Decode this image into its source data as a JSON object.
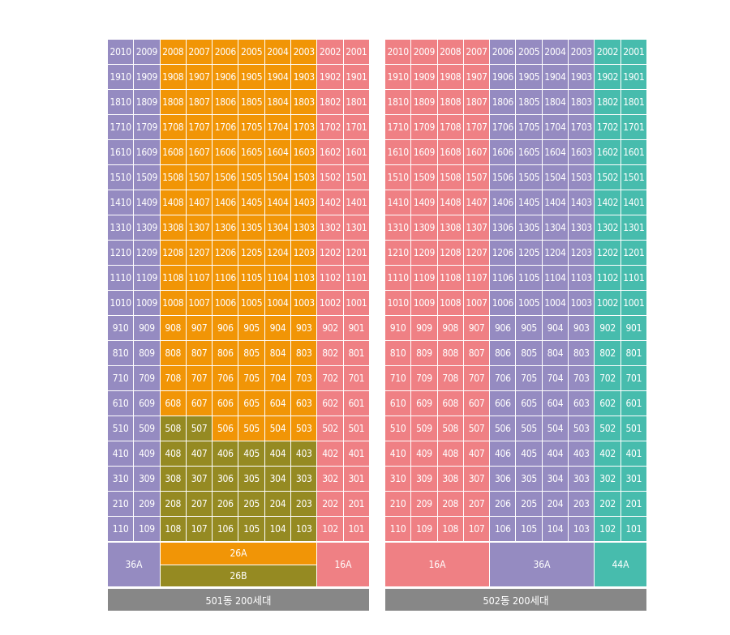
{
  "colors": {
    "36A": "#958bc1",
    "26A": "#f19506",
    "26B": "#958a22",
    "16A": "#ef8084",
    "44A": "#47bcad",
    "footer": "#878787"
  },
  "floors": [
    20,
    19,
    18,
    17,
    16,
    15,
    14,
    13,
    12,
    11,
    10,
    9,
    8,
    7,
    6,
    5,
    4,
    3,
    2,
    1
  ],
  "buildings": [
    {
      "id": "501",
      "footer_label": "501동 200세대",
      "columns": [
        {
          "unit": "10",
          "types": {
            "default": "36A"
          }
        },
        {
          "unit": "09",
          "types": {
            "default": "36A"
          }
        },
        {
          "unit": "08",
          "types": {
            "default": "26A",
            "below5": "26B"
          }
        },
        {
          "unit": "07",
          "types": {
            "default": "26A",
            "below5": "26B"
          }
        },
        {
          "unit": "06",
          "types": {
            "default": "26A",
            "below4": "26B"
          }
        },
        {
          "unit": "05",
          "types": {
            "default": "26A",
            "below4": "26B"
          }
        },
        {
          "unit": "04",
          "types": {
            "default": "26A",
            "below4": "26B"
          }
        },
        {
          "unit": "03",
          "types": {
            "default": "26A",
            "below4": "26B"
          }
        },
        {
          "unit": "02",
          "types": {
            "default": "16A"
          }
        },
        {
          "unit": "01",
          "types": {
            "default": "16A"
          }
        }
      ],
      "legend": [
        {
          "label": "36A",
          "type": "36A",
          "span": 2
        },
        {
          "stack": [
            {
              "label": "26A",
              "type": "26A"
            },
            {
              "label": "26B",
              "type": "26B"
            }
          ],
          "span": 6
        },
        {
          "label": "16A",
          "type": "16A",
          "span": 2
        }
      ]
    },
    {
      "id": "502",
      "footer_label": "502동 200세대",
      "columns": [
        {
          "unit": "10",
          "types": {
            "default": "16A"
          }
        },
        {
          "unit": "09",
          "types": {
            "default": "16A"
          }
        },
        {
          "unit": "08",
          "types": {
            "default": "16A"
          }
        },
        {
          "unit": "07",
          "types": {
            "default": "16A"
          }
        },
        {
          "unit": "06",
          "types": {
            "default": "36A"
          }
        },
        {
          "unit": "05",
          "types": {
            "default": "36A"
          }
        },
        {
          "unit": "04",
          "types": {
            "default": "36A"
          }
        },
        {
          "unit": "03",
          "types": {
            "default": "36A"
          }
        },
        {
          "unit": "02",
          "types": {
            "default": "44A"
          }
        },
        {
          "unit": "01",
          "types": {
            "default": "44A"
          }
        }
      ],
      "legend": [
        {
          "label": "16A",
          "type": "16A",
          "span": 4
        },
        {
          "label": "36A",
          "type": "36A",
          "span": 4
        },
        {
          "label": "44A",
          "type": "44A",
          "span": 2
        }
      ]
    }
  ]
}
